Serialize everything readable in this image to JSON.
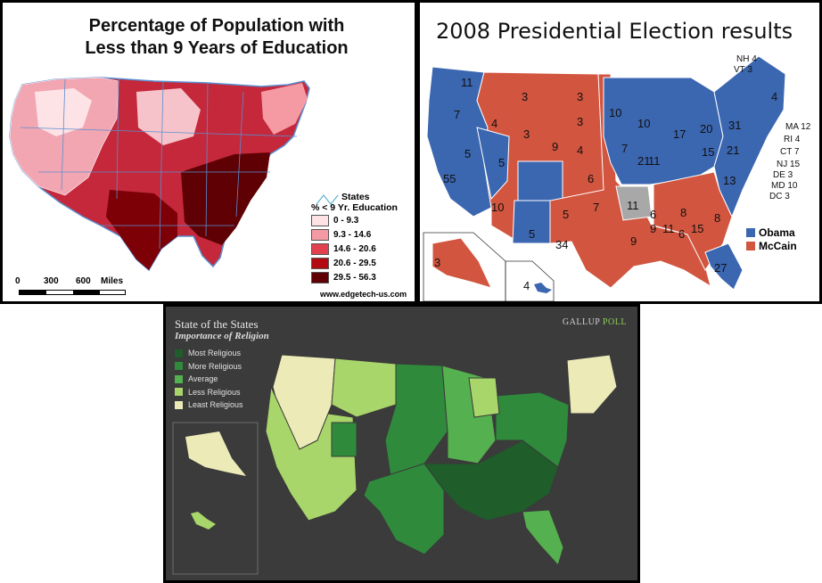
{
  "panel1": {
    "title_line1": "Percentage of Population with",
    "title_line2": "Less than 9 Years of Education",
    "legend_states": "States",
    "legend_header": "% < 9 Yr. Education",
    "legend": [
      {
        "label": "0 - 9.3",
        "color": "#fde3e6"
      },
      {
        "label": "9.3 - 14.6",
        "color": "#f59aa3"
      },
      {
        "label": "14.6 - 20.6",
        "color": "#e2404d"
      },
      {
        "label": "20.6 - 29.5",
        "color": "#b30a12"
      },
      {
        "label": "29.5 - 56.3",
        "color": "#5e0004"
      }
    ],
    "scale": {
      "t0": "0",
      "t1": "300",
      "t2": "600",
      "unit": "Miles"
    },
    "credit": "www.edgetech-us.com"
  },
  "panel2": {
    "title": "2008 Presidential Election results",
    "legend": [
      {
        "label": "Obama",
        "color": "#3b66b0"
      },
      {
        "label": "McCain",
        "color": "#d2553f"
      }
    ],
    "ev_labels": [
      "11",
      "7",
      "5",
      "55",
      "3",
      "4",
      "5",
      "3",
      "10",
      "5",
      "9",
      "3",
      "3",
      "4",
      "6",
      "5",
      "7",
      "34",
      "11",
      "10",
      "10",
      "7",
      "11",
      "17",
      "21",
      "20",
      "15",
      "13",
      "31",
      "21",
      "4",
      "6",
      "9",
      "9",
      "6",
      "8",
      "11",
      "15",
      "8",
      "27",
      "3",
      "4"
    ],
    "ev_small": [
      "NH 4",
      "VT 3",
      "MA 12",
      "RI 4",
      "CT 7",
      "NJ 15",
      "DE 3",
      "MD 10",
      "DC 3"
    ],
    "colors": {
      "obama": "#3b66b0",
      "mccain": "#d2553f",
      "undecided": "#a8a8a8"
    }
  },
  "panel3": {
    "title": "State of the States",
    "subtitle": "Importance of Religion",
    "brand": "GALLUP",
    "brand_poll": "POLL",
    "legend": [
      {
        "label": "Most Religious",
        "color": "#1f5d2a"
      },
      {
        "label": "More Religious",
        "color": "#2f8a3c"
      },
      {
        "label": "Average",
        "color": "#55b04f"
      },
      {
        "label": "Less Religious",
        "color": "#a9d66a"
      },
      {
        "label": "Least Religious",
        "color": "#ecebb8"
      }
    ]
  }
}
